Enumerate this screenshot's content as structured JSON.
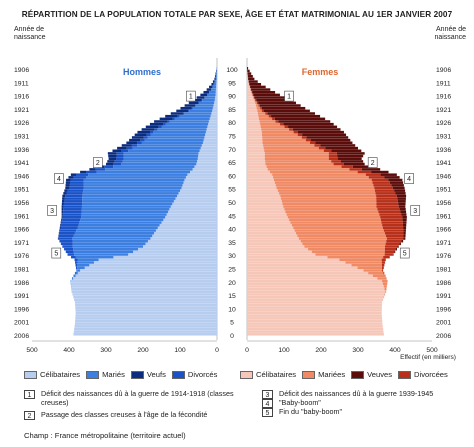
{
  "chart_data": {
    "type": "population-pyramid",
    "title": "RÉPARTITION DE LA POPULATION TOTALE PAR SEXE, ÂGE ET ÉTAT MATRIMONIAL AU 1ER JANVIER 2007",
    "birth_year_label": "Année de naissance",
    "effectif_label": "Effectif (en milliers)",
    "sexes": {
      "male": "Hommes",
      "female": "Femmes"
    },
    "x_ticks": [
      500,
      400,
      300,
      200,
      100,
      0
    ],
    "xlim": [
      0,
      500
    ],
    "age_ticks": [
      0,
      5,
      10,
      15,
      20,
      25,
      30,
      35,
      40,
      45,
      50,
      55,
      60,
      65,
      70,
      75,
      80,
      85,
      90,
      95,
      100
    ],
    "birth_year_ticks": [
      1906,
      1911,
      1916,
      1921,
      1926,
      1931,
      1936,
      1941,
      1946,
      1951,
      1956,
      1961,
      1966,
      1971,
      1976,
      1981,
      1986,
      1991,
      1996,
      2001,
      2006
    ],
    "categories_male": [
      "Célibataires",
      "Mariés",
      "Veufs",
      "Divorcés"
    ],
    "categories_female": [
      "Célibataires",
      "Mariées",
      "Veuves",
      "Divorcées"
    ],
    "colors": {
      "male": [
        "#b7cdf0",
        "#3d7fe0",
        "#0b2d80",
        "#1a52c8"
      ],
      "female": [
        "#f6c7b8",
        "#f08a65",
        "#5a0d0a",
        "#b8301a"
      ]
    },
    "age_knots": [
      0,
      4,
      8,
      12,
      16,
      20,
      24,
      28,
      30,
      33,
      36,
      40,
      44,
      48,
      52,
      55,
      58,
      60,
      62,
      64,
      66,
      68,
      70,
      72,
      76,
      80,
      84,
      88,
      90,
      92,
      94,
      96,
      100
    ],
    "male_total": [
      388,
      384,
      382,
      384,
      393,
      396,
      380,
      385,
      404,
      418,
      430,
      425,
      420,
      420,
      418,
      410,
      408,
      395,
      345,
      300,
      293,
      295,
      270,
      245,
      215,
      170,
      110,
      65,
      45,
      28,
      15,
      7,
      1
    ],
    "male_celibataires": [
      388,
      384,
      382,
      384,
      393,
      395,
      370,
      320,
      240,
      200,
      180,
      160,
      140,
      125,
      108,
      96,
      88,
      80,
      66,
      56,
      52,
      50,
      44,
      38,
      30,
      22,
      13,
      6,
      4,
      3,
      2,
      1,
      0
    ],
    "male_veufs": [
      0,
      0,
      0,
      0,
      0,
      0,
      0,
      0,
      0,
      0,
      1,
      2,
      3,
      5,
      8,
      10,
      12,
      15,
      17,
      19,
      21,
      24,
      26,
      29,
      34,
      36,
      32,
      24,
      18,
      12,
      6,
      3,
      0
    ],
    "male_divorces": [
      0,
      0,
      0,
      0,
      0,
      0,
      2,
      8,
      18,
      28,
      38,
      46,
      50,
      50,
      46,
      40,
      36,
      32,
      26,
      22,
      20,
      19,
      16,
      13,
      9,
      6,
      3,
      1,
      1,
      0,
      0,
      0,
      0
    ],
    "female_total": [
      370,
      366,
      364,
      365,
      376,
      380,
      368,
      375,
      396,
      410,
      428,
      430,
      432,
      428,
      430,
      426,
      420,
      405,
      360,
      318,
      310,
      318,
      300,
      285,
      262,
      225,
      170,
      120,
      88,
      62,
      38,
      20,
      3
    ],
    "female_celibataires": [
      370,
      366,
      364,
      365,
      374,
      365,
      315,
      250,
      185,
      155,
      140,
      125,
      110,
      98,
      90,
      80,
      73,
      68,
      56,
      50,
      48,
      48,
      45,
      42,
      40,
      34,
      28,
      20,
      15,
      10,
      6,
      3,
      0
    ],
    "female_veuves": [
      0,
      0,
      0,
      0,
      0,
      0,
      0,
      1,
      2,
      3,
      5,
      8,
      12,
      18,
      25,
      32,
      38,
      44,
      50,
      56,
      64,
      75,
      88,
      100,
      125,
      140,
      125,
      95,
      72,
      52,
      32,
      17,
      3
    ],
    "female_divorcees": [
      0,
      0,
      0,
      0,
      0,
      0,
      3,
      10,
      22,
      34,
      45,
      55,
      60,
      60,
      56,
      50,
      45,
      40,
      33,
      28,
      25,
      22,
      18,
      15,
      11,
      8,
      5,
      3,
      2,
      1,
      0,
      0,
      0
    ],
    "annotations_male": [
      {
        "label": "1",
        "age": 90
      },
      {
        "label": "2",
        "age": 65
      },
      {
        "label": "3",
        "age": 47
      },
      {
        "label": "4",
        "age": 59
      },
      {
        "label": "5",
        "age": 31
      }
    ],
    "annotations_female": [
      {
        "label": "1",
        "age": 90
      },
      {
        "label": "2",
        "age": 65
      },
      {
        "label": "3",
        "age": 47
      },
      {
        "label": "4",
        "age": 59
      },
      {
        "label": "5",
        "age": 31
      }
    ]
  },
  "legend": {
    "male": [
      "Célibataires",
      "Mariés",
      "Veufs",
      "Divorcés"
    ],
    "female": [
      "Célibataires",
      "Mariées",
      "Veuves",
      "Divorcées"
    ]
  },
  "notes": {
    "n1": {
      "num": "1",
      "text": "Déficit des naissances dû à la guerre de 1914-1918 (classes creuses)"
    },
    "n2": {
      "num": "2",
      "text": "Passage des classes creuses à l'âge de la fécondité"
    },
    "n3": {
      "num": "3",
      "text": "Déficit des naissances dû à la guerre 1939-1945"
    },
    "n4": {
      "num": "4",
      "text": "\"Baby-boom\""
    },
    "n5": {
      "num": "5",
      "text": "Fin du \"baby-boom\""
    }
  },
  "champ": "Champ : France métropolitaine (territoire actuel)"
}
